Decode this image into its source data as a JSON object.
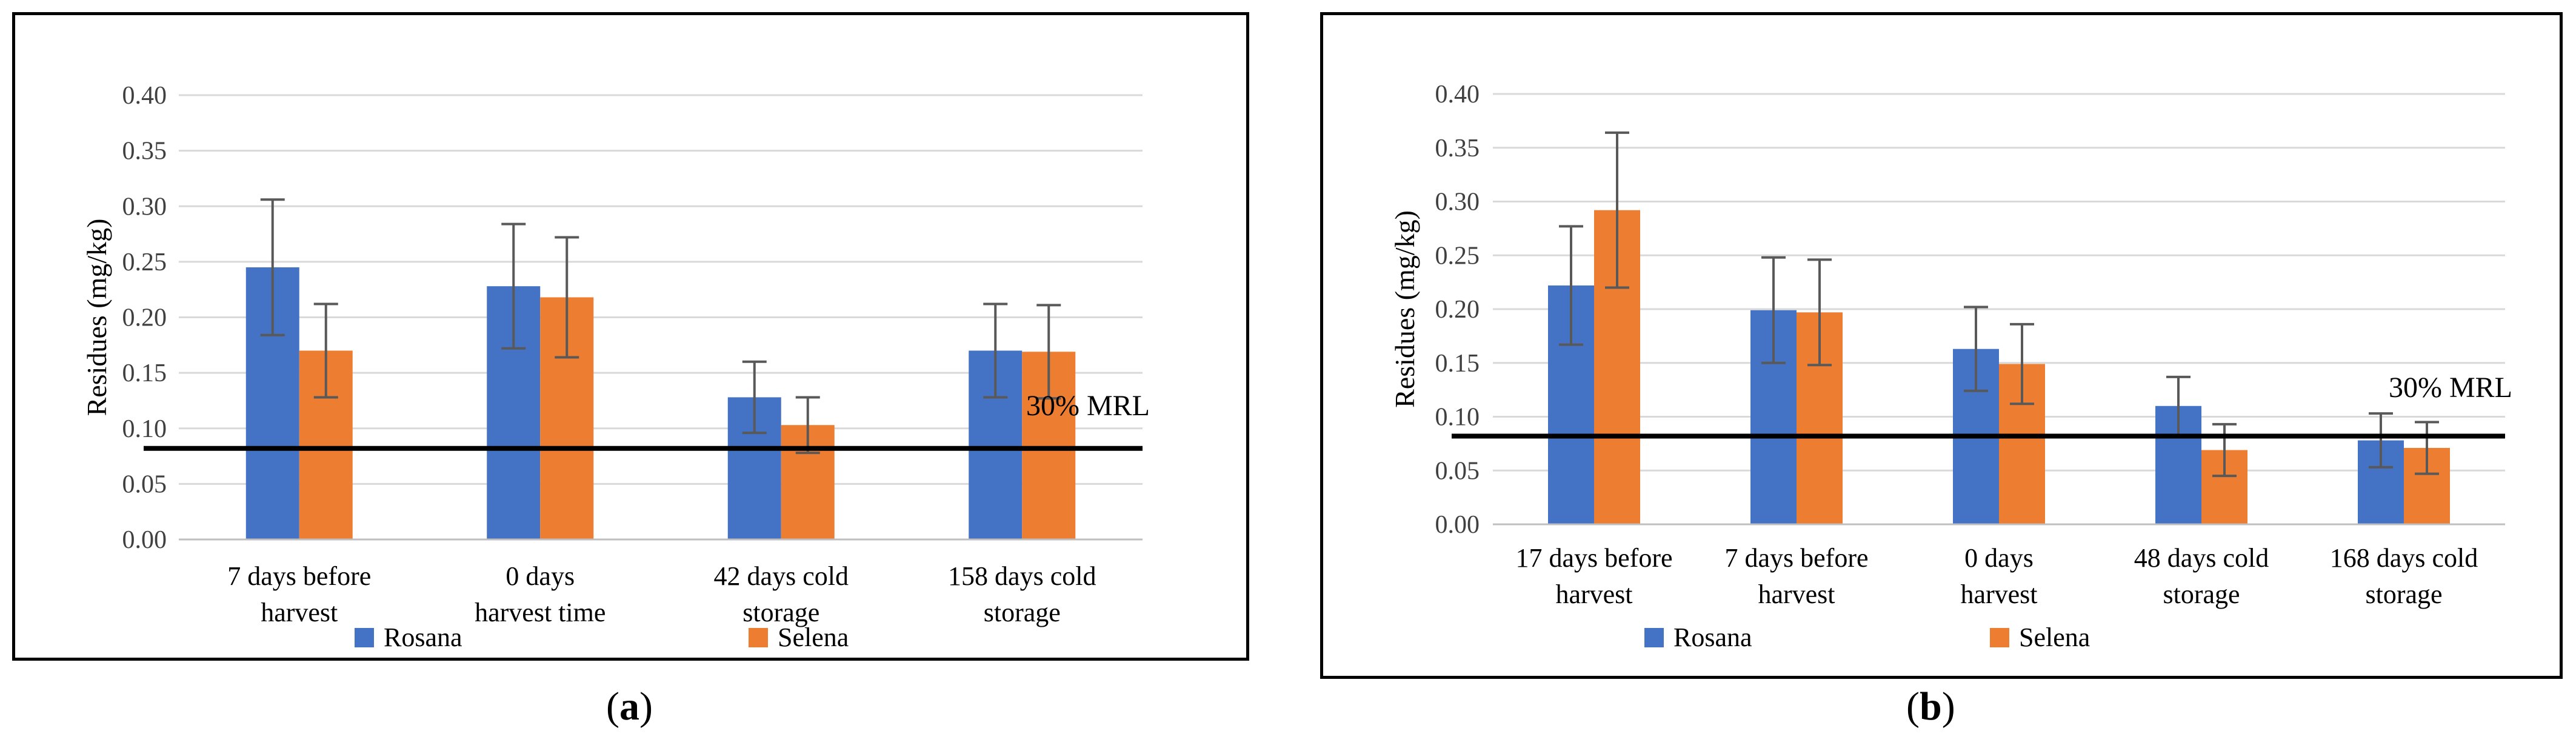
{
  "chart_data": [
    {
      "type": "bar",
      "panel_label": "a",
      "ylabel": "Residues (mg/kg)",
      "ylim": [
        0,
        0.4
      ],
      "ytick_labels": [
        "0.00",
        "0.05",
        "0.10",
        "0.15",
        "0.20",
        "0.25",
        "0.30",
        "0.35",
        "0.40"
      ],
      "grid": true,
      "categories": [
        [
          "7 days before",
          "harvest"
        ],
        [
          "0 days",
          "harvest time"
        ],
        [
          "42 days cold",
          "storage"
        ],
        [
          "158 days cold",
          "storage"
        ]
      ],
      "series": [
        {
          "name": "Rosana",
          "color": "#4472C4",
          "values": [
            0.245,
            0.228,
            0.128,
            0.17
          ],
          "errors": [
            0.061,
            0.056,
            0.032,
            0.042
          ]
        },
        {
          "name": "Selena",
          "color": "#ED7D31",
          "values": [
            0.17,
            0.218,
            0.103,
            0.169
          ],
          "errors": [
            0.042,
            0.054,
            0.025,
            0.042
          ]
        }
      ],
      "reference_line": {
        "value": 0.082,
        "label": "30% MRL"
      },
      "legend": "bottom"
    },
    {
      "type": "bar",
      "panel_label": "b",
      "ylabel": "Residues (mg/kg)",
      "ylim": [
        0,
        0.4
      ],
      "ytick_labels": [
        "0.00",
        "0.05",
        "0.10",
        "0.15",
        "0.20",
        "0.25",
        "0.30",
        "0.35",
        "0.40"
      ],
      "grid": true,
      "categories": [
        [
          "17 days before",
          "harvest"
        ],
        [
          "7 days before",
          "harvest"
        ],
        [
          "0 days",
          "harvest"
        ],
        [
          "48 days cold",
          "storage"
        ],
        [
          "168 days cold",
          "storage"
        ]
      ],
      "series": [
        {
          "name": "Rosana",
          "color": "#4472C4",
          "values": [
            0.222,
            0.199,
            0.163,
            0.11,
            0.078
          ],
          "errors": [
            0.055,
            0.049,
            0.039,
            0.027,
            0.025
          ]
        },
        {
          "name": "Selena",
          "color": "#ED7D31",
          "values": [
            0.292,
            0.197,
            0.149,
            0.069,
            0.071
          ],
          "errors": [
            0.072,
            0.049,
            0.037,
            0.024,
            0.024
          ]
        }
      ],
      "reference_line": {
        "value": 0.082,
        "label": "30% MRL"
      },
      "legend": "bottom"
    }
  ],
  "captions": {
    "a": "a",
    "b": "b"
  }
}
